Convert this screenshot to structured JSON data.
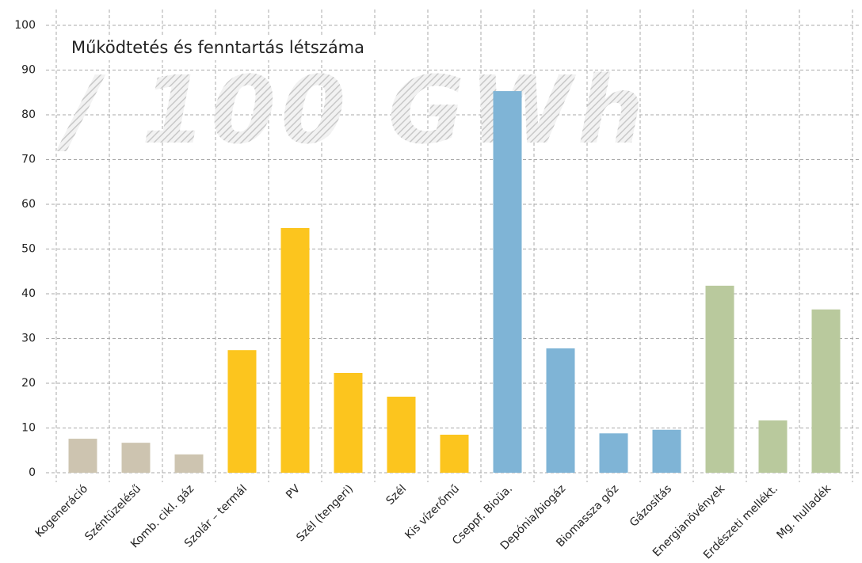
{
  "chart_data": {
    "type": "bar",
    "title": "Működtetés és fenntartás létszáma",
    "subtitle": "/ 100 GWh",
    "categories": [
      "Kogeneráció",
      "Széntüzelésű",
      "Komb. cikl. gáz",
      "Szolár – termál",
      "PV",
      "Szél (tengeri)",
      "Szél",
      "Kis vízerőmű",
      "Cseppf. Bioüa.",
      "Depónia/biogáz",
      "Biomassza gőz",
      "Gázosítás",
      "Energianövények",
      "Erdészeti mellékt.",
      "Mg. hulladék"
    ],
    "values": [
      7.6,
      6.7,
      4.1,
      27.4,
      54.7,
      22.3,
      17.0,
      8.5,
      85.3,
      27.8,
      8.8,
      9.6,
      41.8,
      11.7,
      36.5
    ],
    "colors": [
      "#cdc4b0",
      "#cdc4b0",
      "#cdc4b0",
      "#fcc51e",
      "#fcc51e",
      "#fcc51e",
      "#fcc51e",
      "#fcc51e",
      "#7fb4d6",
      "#7fb4d6",
      "#7fb4d6",
      "#7fb4d6",
      "#b9c99d",
      "#b9c99d",
      "#b9c99d"
    ],
    "ylim": [
      0,
      100
    ],
    "yticks": [
      0,
      10,
      20,
      30,
      40,
      50,
      60,
      70,
      80,
      90,
      100
    ],
    "grid": true
  }
}
